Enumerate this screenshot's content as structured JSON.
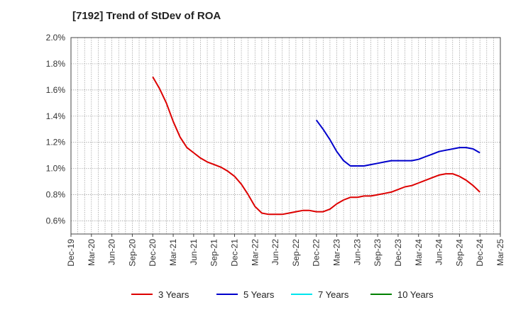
{
  "chart_data": {
    "type": "line",
    "title": "[7192]  Trend of StDev of ROA",
    "xlabel": "",
    "ylabel": "",
    "x_ticks": [
      "Dec-19",
      "Mar-20",
      "Jun-20",
      "Sep-20",
      "Dec-20",
      "Mar-21",
      "Jun-21",
      "Sep-21",
      "Dec-21",
      "Mar-22",
      "Jun-22",
      "Sep-22",
      "Dec-22",
      "Mar-23",
      "Jun-23",
      "Sep-23",
      "Dec-23",
      "Mar-24",
      "Jun-24",
      "Sep-24",
      "Dec-24",
      "Mar-25"
    ],
    "y_ticks": [
      "0.6%",
      "0.8%",
      "1.0%",
      "1.2%",
      "1.4%",
      "1.6%",
      "1.8%",
      "2.0%"
    ],
    "ylim": [
      0.5,
      2.0
    ],
    "grid": true,
    "legend_position": "bottom",
    "series": [
      {
        "name": "3 Years",
        "color": "#dd0000",
        "points": [
          [
            "Dec-20",
            1.7
          ],
          [
            "Jan-21",
            1.61
          ],
          [
            "Feb-21",
            1.5
          ],
          [
            "Mar-21",
            1.36
          ],
          [
            "Apr-21",
            1.24
          ],
          [
            "May-21",
            1.16
          ],
          [
            "Jun-21",
            1.12
          ],
          [
            "Jul-21",
            1.08
          ],
          [
            "Aug-21",
            1.05
          ],
          [
            "Sep-21",
            1.03
          ],
          [
            "Oct-21",
            1.01
          ],
          [
            "Nov-21",
            0.98
          ],
          [
            "Dec-21",
            0.94
          ],
          [
            "Jan-22",
            0.88
          ],
          [
            "Feb-22",
            0.8
          ],
          [
            "Mar-22",
            0.71
          ],
          [
            "Apr-22",
            0.66
          ],
          [
            "May-22",
            0.65
          ],
          [
            "Jun-22",
            0.65
          ],
          [
            "Jul-22",
            0.65
          ],
          [
            "Aug-22",
            0.66
          ],
          [
            "Sep-22",
            0.67
          ],
          [
            "Oct-22",
            0.68
          ],
          [
            "Nov-22",
            0.68
          ],
          [
            "Dec-22",
            0.67
          ],
          [
            "Jan-23",
            0.67
          ],
          [
            "Feb-23",
            0.69
          ],
          [
            "Mar-23",
            0.73
          ],
          [
            "Apr-23",
            0.76
          ],
          [
            "May-23",
            0.78
          ],
          [
            "Jun-23",
            0.78
          ],
          [
            "Jul-23",
            0.79
          ],
          [
            "Aug-23",
            0.79
          ],
          [
            "Sep-23",
            0.8
          ],
          [
            "Oct-23",
            0.81
          ],
          [
            "Nov-23",
            0.82
          ],
          [
            "Dec-23",
            0.84
          ],
          [
            "Jan-24",
            0.86
          ],
          [
            "Feb-24",
            0.87
          ],
          [
            "Mar-24",
            0.89
          ],
          [
            "Apr-24",
            0.91
          ],
          [
            "May-24",
            0.93
          ],
          [
            "Jun-24",
            0.95
          ],
          [
            "Jul-24",
            0.96
          ],
          [
            "Aug-24",
            0.96
          ],
          [
            "Sep-24",
            0.94
          ],
          [
            "Oct-24",
            0.91
          ],
          [
            "Nov-24",
            0.87
          ],
          [
            "Dec-24",
            0.82
          ]
        ]
      },
      {
        "name": "5 Years",
        "color": "#0000cc",
        "points": [
          [
            "Dec-22",
            1.37
          ],
          [
            "Jan-23",
            1.3
          ],
          [
            "Feb-23",
            1.22
          ],
          [
            "Mar-23",
            1.13
          ],
          [
            "Apr-23",
            1.06
          ],
          [
            "May-23",
            1.02
          ],
          [
            "Jun-23",
            1.02
          ],
          [
            "Jul-23",
            1.02
          ],
          [
            "Aug-23",
            1.03
          ],
          [
            "Sep-23",
            1.04
          ],
          [
            "Oct-23",
            1.05
          ],
          [
            "Nov-23",
            1.06
          ],
          [
            "Dec-23",
            1.06
          ],
          [
            "Jan-24",
            1.06
          ],
          [
            "Feb-24",
            1.06
          ],
          [
            "Mar-24",
            1.07
          ],
          [
            "Apr-24",
            1.09
          ],
          [
            "May-24",
            1.11
          ],
          [
            "Jun-24",
            1.13
          ],
          [
            "Jul-24",
            1.14
          ],
          [
            "Aug-24",
            1.15
          ],
          [
            "Sep-24",
            1.16
          ],
          [
            "Oct-24",
            1.16
          ],
          [
            "Nov-24",
            1.15
          ],
          [
            "Dec-24",
            1.12
          ]
        ]
      },
      {
        "name": "7 Years",
        "color": "#00e5ee",
        "points": []
      },
      {
        "name": "10 Years",
        "color": "#008000",
        "points": []
      }
    ]
  }
}
